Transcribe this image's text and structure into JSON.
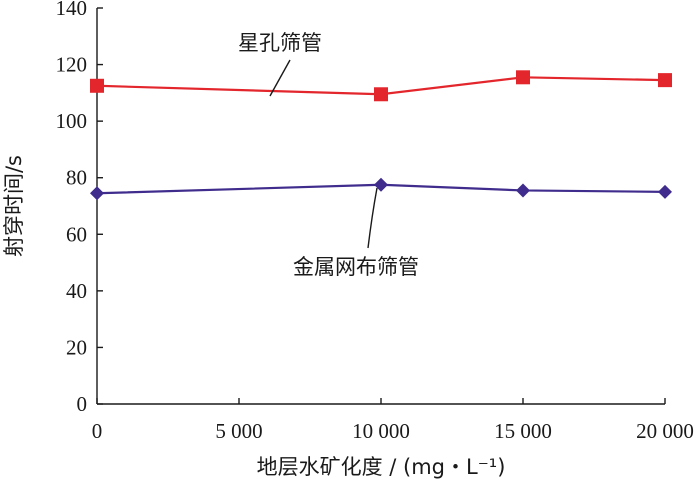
{
  "chart_data": {
    "type": "line",
    "x": [
      0,
      10000,
      15000,
      20000
    ],
    "series": [
      {
        "name": "星孔筛管",
        "values": [
          112.5,
          109.5,
          115.5,
          114.5
        ],
        "color": "#e3262c",
        "marker": "square"
      },
      {
        "name": "金属网布筛管",
        "values": [
          74.5,
          77.5,
          75.5,
          75.0
        ],
        "color": "#3f2c8c",
        "marker": "diamond"
      }
    ],
    "xlim": [
      0,
      20000
    ],
    "ylim": [
      0,
      140
    ],
    "x_ticks": [
      0,
      5000,
      10000,
      15000,
      20000
    ],
    "x_tick_labels": [
      "0",
      "5 000",
      "10 000",
      "15 000",
      "20 000"
    ],
    "y_ticks": [
      0,
      20,
      40,
      60,
      80,
      100,
      120,
      140
    ],
    "y_tick_labels": [
      "0",
      "20",
      "40",
      "60",
      "80",
      "100",
      "120",
      "140"
    ],
    "xlabel": "地层水矿化度 / (mg・L⁻¹)",
    "ylabel": "射穿时间/s",
    "title": "",
    "grid": false,
    "legend": "inline annotations with leader lines"
  }
}
